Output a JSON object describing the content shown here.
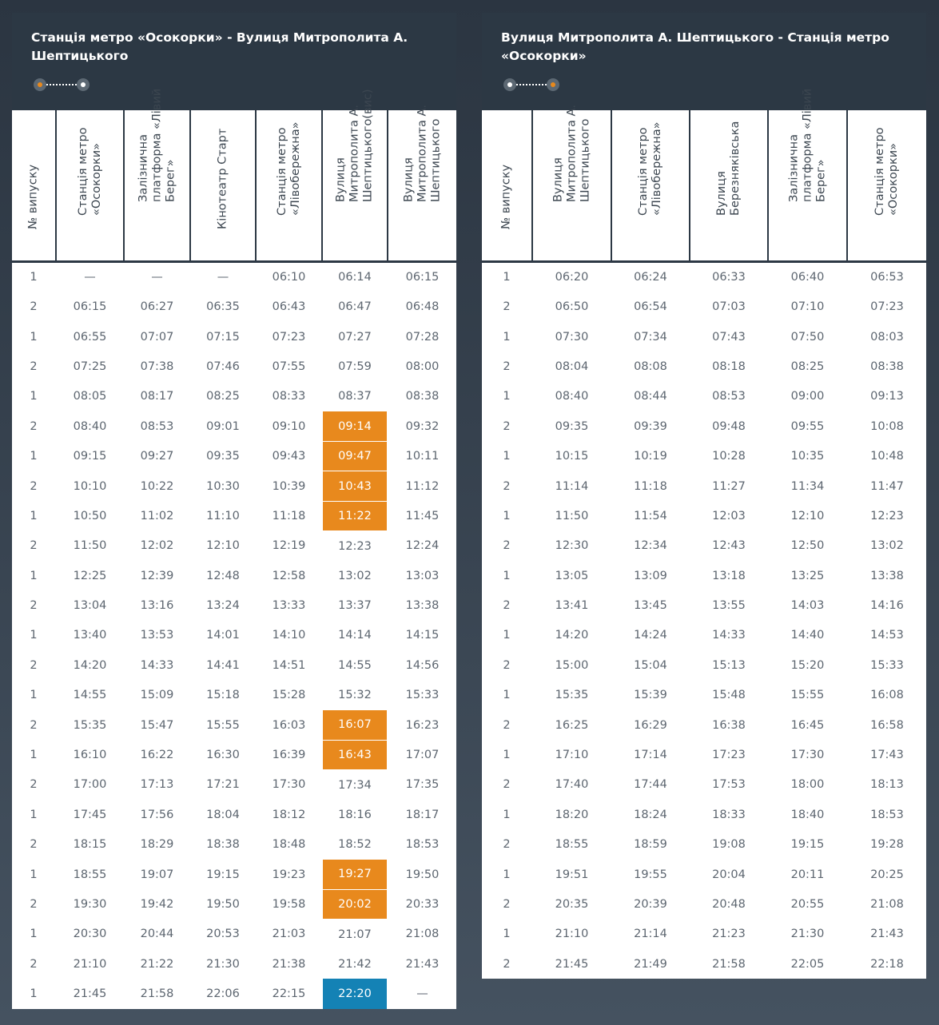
{
  "colors": {
    "header_bg": "#2c3844",
    "highlight_orange": "#e8891d",
    "highlight_blue": "#1482b5",
    "text": "#5d6670"
  },
  "left": {
    "title": "Станція метро «Осокорки» - Вулиця Митрополита А. Шептицького",
    "columns": [
      "№ випуску",
      "Станція метро «Осокорки»",
      "Залізнична платформа «Лівий Берег»",
      "Кінотеатр Старт",
      "Станція метро «Лівобережна»",
      "Вулиця Митрополита А. Шептицького(вис)",
      "Вулиця Митрополита А. Шептицького"
    ],
    "rows": [
      [
        "1",
        "—",
        "—",
        "—",
        "06:10",
        "06:14",
        "06:15"
      ],
      [
        "2",
        "06:15",
        "06:27",
        "06:35",
        "06:43",
        "06:47",
        "06:48"
      ],
      [
        "1",
        "06:55",
        "07:07",
        "07:15",
        "07:23",
        "07:27",
        "07:28"
      ],
      [
        "2",
        "07:25",
        "07:38",
        "07:46",
        "07:55",
        "07:59",
        "08:00"
      ],
      [
        "1",
        "08:05",
        "08:17",
        "08:25",
        "08:33",
        "08:37",
        "08:38"
      ],
      [
        "2",
        "08:40",
        "08:53",
        "09:01",
        "09:10",
        "09:14",
        "09:32"
      ],
      [
        "1",
        "09:15",
        "09:27",
        "09:35",
        "09:43",
        "09:47",
        "10:11"
      ],
      [
        "2",
        "10:10",
        "10:22",
        "10:30",
        "10:39",
        "10:43",
        "11:12"
      ],
      [
        "1",
        "10:50",
        "11:02",
        "11:10",
        "11:18",
        "11:22",
        "11:45"
      ],
      [
        "2",
        "11:50",
        "12:02",
        "12:10",
        "12:19",
        "12:23",
        "12:24"
      ],
      [
        "1",
        "12:25",
        "12:39",
        "12:48",
        "12:58",
        "13:02",
        "13:03"
      ],
      [
        "2",
        "13:04",
        "13:16",
        "13:24",
        "13:33",
        "13:37",
        "13:38"
      ],
      [
        "1",
        "13:40",
        "13:53",
        "14:01",
        "14:10",
        "14:14",
        "14:15"
      ],
      [
        "2",
        "14:20",
        "14:33",
        "14:41",
        "14:51",
        "14:55",
        "14:56"
      ],
      [
        "1",
        "14:55",
        "15:09",
        "15:18",
        "15:28",
        "15:32",
        "15:33"
      ],
      [
        "2",
        "15:35",
        "15:47",
        "15:55",
        "16:03",
        "16:07",
        "16:23"
      ],
      [
        "1",
        "16:10",
        "16:22",
        "16:30",
        "16:39",
        "16:43",
        "17:07"
      ],
      [
        "2",
        "17:00",
        "17:13",
        "17:21",
        "17:30",
        "17:34",
        "17:35"
      ],
      [
        "1",
        "17:45",
        "17:56",
        "18:04",
        "18:12",
        "18:16",
        "18:17"
      ],
      [
        "2",
        "18:15",
        "18:29",
        "18:38",
        "18:48",
        "18:52",
        "18:53"
      ],
      [
        "1",
        "18:55",
        "19:07",
        "19:15",
        "19:23",
        "19:27",
        "19:50"
      ],
      [
        "2",
        "19:30",
        "19:42",
        "19:50",
        "19:58",
        "20:02",
        "20:33"
      ],
      [
        "1",
        "20:30",
        "20:44",
        "20:53",
        "21:03",
        "21:07",
        "21:08"
      ],
      [
        "2",
        "21:10",
        "21:22",
        "21:30",
        "21:38",
        "21:42",
        "21:43"
      ],
      [
        "1",
        "21:45",
        "21:58",
        "22:06",
        "22:15",
        "22:20",
        "—"
      ]
    ],
    "highlights": {
      "5": {
        "5": "orange"
      },
      "6": {
        "5": "orange"
      },
      "7": {
        "5": "orange"
      },
      "8": {
        "5": "orange"
      },
      "15": {
        "5": "orange"
      },
      "16": {
        "5": "orange"
      },
      "20": {
        "5": "orange"
      },
      "21": {
        "5": "orange"
      },
      "24": {
        "5": "blue"
      }
    }
  },
  "right": {
    "title": "Вулиця Митрополита А. Шептицького - Станція метро «Осокорки»",
    "columns": [
      "№ випуску",
      "Вулиця Митрополита А. Шептицького",
      "Станція метро «Лівобережна»",
      "Вулиця Березняківська",
      "Залізнична платформа «Лівий Берег»",
      "Станція метро «Осокорки»"
    ],
    "rows": [
      [
        "1",
        "06:20",
        "06:24",
        "06:33",
        "06:40",
        "06:53"
      ],
      [
        "2",
        "06:50",
        "06:54",
        "07:03",
        "07:10",
        "07:23"
      ],
      [
        "1",
        "07:30",
        "07:34",
        "07:43",
        "07:50",
        "08:03"
      ],
      [
        "2",
        "08:04",
        "08:08",
        "08:18",
        "08:25",
        "08:38"
      ],
      [
        "1",
        "08:40",
        "08:44",
        "08:53",
        "09:00",
        "09:13"
      ],
      [
        "2",
        "09:35",
        "09:39",
        "09:48",
        "09:55",
        "10:08"
      ],
      [
        "1",
        "10:15",
        "10:19",
        "10:28",
        "10:35",
        "10:48"
      ],
      [
        "2",
        "11:14",
        "11:18",
        "11:27",
        "11:34",
        "11:47"
      ],
      [
        "1",
        "11:50",
        "11:54",
        "12:03",
        "12:10",
        "12:23"
      ],
      [
        "2",
        "12:30",
        "12:34",
        "12:43",
        "12:50",
        "13:02"
      ],
      [
        "1",
        "13:05",
        "13:09",
        "13:18",
        "13:25",
        "13:38"
      ],
      [
        "2",
        "13:41",
        "13:45",
        "13:55",
        "14:03",
        "14:16"
      ],
      [
        "1",
        "14:20",
        "14:24",
        "14:33",
        "14:40",
        "14:53"
      ],
      [
        "2",
        "15:00",
        "15:04",
        "15:13",
        "15:20",
        "15:33"
      ],
      [
        "1",
        "15:35",
        "15:39",
        "15:48",
        "15:55",
        "16:08"
      ],
      [
        "2",
        "16:25",
        "16:29",
        "16:38",
        "16:45",
        "16:58"
      ],
      [
        "1",
        "17:10",
        "17:14",
        "17:23",
        "17:30",
        "17:43"
      ],
      [
        "2",
        "17:40",
        "17:44",
        "17:53",
        "18:00",
        "18:13"
      ],
      [
        "1",
        "18:20",
        "18:24",
        "18:33",
        "18:40",
        "18:53"
      ],
      [
        "2",
        "18:55",
        "18:59",
        "19:08",
        "19:15",
        "19:28"
      ],
      [
        "1",
        "19:51",
        "19:55",
        "20:04",
        "20:11",
        "20:25"
      ],
      [
        "2",
        "20:35",
        "20:39",
        "20:48",
        "20:55",
        "21:08"
      ],
      [
        "1",
        "21:10",
        "21:14",
        "21:23",
        "21:30",
        "21:43"
      ],
      [
        "2",
        "21:45",
        "21:49",
        "21:58",
        "22:05",
        "22:18"
      ]
    ],
    "highlights": {}
  }
}
